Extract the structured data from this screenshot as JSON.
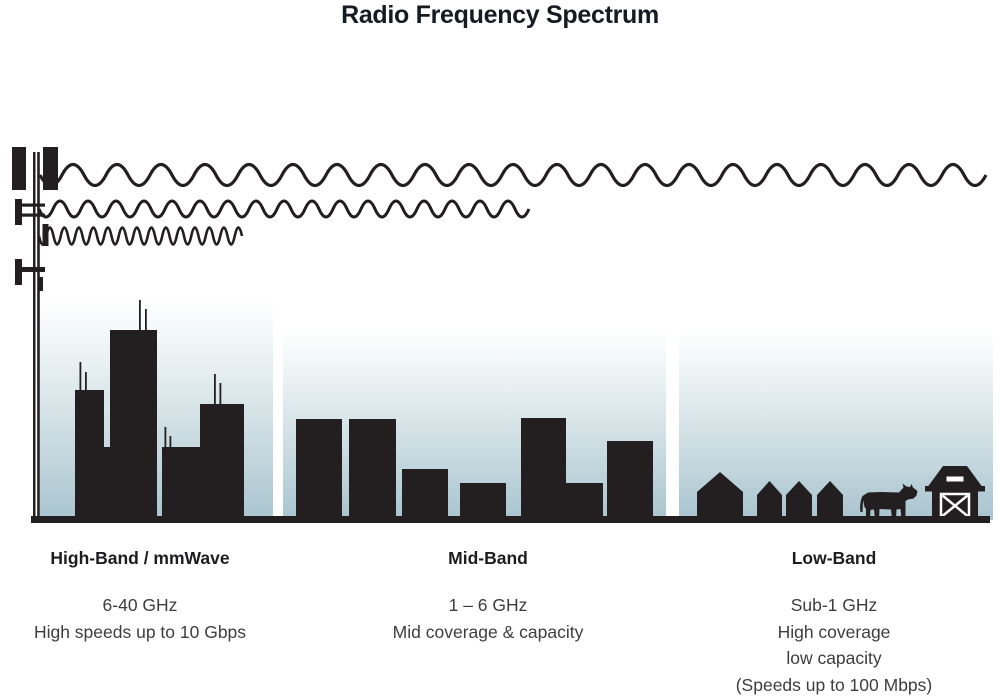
{
  "title": "Radio Frequency Spectrum",
  "colors": {
    "ink": "#231f20",
    "sky_top": "#ffffff",
    "sky_bottom": "#a9c4cf",
    "title_text": "#161a22",
    "heading_text": "#1d1d1f",
    "body_text": "#3e3e3e"
  },
  "bands": [
    {
      "id": "high-band",
      "heading": "High-Band / mmWave",
      "lines": [
        "6-40 GHz",
        "High speeds up to 10 Gbps"
      ],
      "scene": "city-skyline",
      "wave": "short-wavelength-high-frequency"
    },
    {
      "id": "mid-band",
      "heading": "Mid-Band",
      "lines": [
        "1 – 6 GHz",
        "Mid coverage & capacity"
      ],
      "scene": "mid-rise-buildings",
      "wave": "medium-wavelength-medium-frequency"
    },
    {
      "id": "low-band",
      "heading": "Low-Band",
      "lines": [
        "Sub-1 GHz",
        "High coverage",
        "low capacity",
        "(Speeds up to 100 Mbps)"
      ],
      "scene": "rural-farm-houses-cow-barn",
      "wave": "long-wavelength-low-frequency"
    }
  ],
  "icons": {
    "cell-tower-icon": "transmission mast with antenna panels",
    "low-frequency-wave-icon": "long sine wave spanning all bands",
    "mid-frequency-wave-icon": "medium sine wave spanning two bands",
    "high-frequency-wave-icon": "short tight sine wave spanning one band",
    "city-skyline-icon": "tall skyscraper silhouettes",
    "mid-rise-buildings-icon": "medium building silhouettes",
    "house-icon": "small pitched-roof house silhouettes",
    "cow-icon": "cow silhouette",
    "barn-icon": "barn with crossbuck door"
  }
}
